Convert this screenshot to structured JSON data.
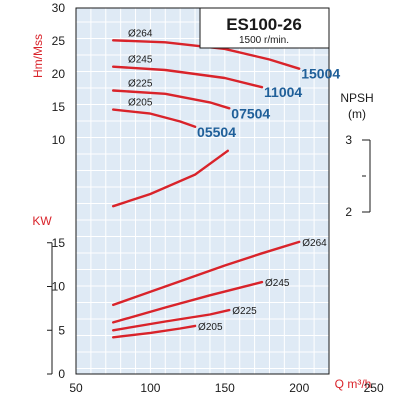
{
  "chart_data": {
    "title": "ES100-26",
    "subtitle": "1500 r/min.",
    "colors": {
      "curve": "#d9232a",
      "model": "#1f5f99",
      "grid_bg": "#dfeaf5"
    },
    "x_axis": {
      "label": "Q m³/h",
      "range": [
        50,
        220
      ],
      "ticks": [
        "50",
        "100",
        "150",
        "200",
        "250"
      ],
      "tick_values": [
        50,
        100,
        150,
        200,
        250
      ]
    },
    "head_axis": {
      "label": "Hm/Mss",
      "range": [
        10,
        30
      ],
      "ticks": [
        "10",
        "15",
        "20",
        "25",
        "30"
      ],
      "tick_values": [
        10,
        15,
        20,
        25,
        30
      ]
    },
    "power_axis": {
      "label": "KW",
      "range": [
        0,
        15
      ],
      "ticks": [
        "0",
        "5",
        "10",
        "15"
      ],
      "tick_values": [
        0,
        5,
        10,
        15
      ]
    },
    "npsh_axis": {
      "label_line1": "NPSH",
      "label_line2": "(m)",
      "ticks": [
        "2",
        "3"
      ]
    },
    "head_curves": [
      {
        "diameter": "Ø264",
        "model": "15004",
        "x": [
          75,
          110,
          150,
          180,
          200
        ],
        "y": [
          25.1,
          24.8,
          23.8,
          22.2,
          20.8
        ]
      },
      {
        "diameter": "Ø245",
        "model": "11004",
        "x": [
          75,
          110,
          150,
          175
        ],
        "y": [
          21.1,
          20.6,
          19.4,
          18.0
        ]
      },
      {
        "diameter": "Ø225",
        "model": "07504",
        "x": [
          75,
          110,
          140,
          153
        ],
        "y": [
          17.5,
          17.0,
          15.7,
          14.8
        ]
      },
      {
        "diameter": "Ø205",
        "model": "05504",
        "x": [
          75,
          100,
          120,
          130
        ],
        "y": [
          14.6,
          14.0,
          12.8,
          12.0
        ]
      }
    ],
    "npsh_curve": {
      "x": [
        75,
        100,
        130,
        152
      ],
      "y": [
        2.08,
        2.25,
        2.52,
        2.85
      ]
    },
    "power_curves": [
      {
        "diameter": "Ø264",
        "x": [
          75,
          110,
          150,
          175,
          200
        ],
        "y": [
          7.9,
          10.0,
          12.4,
          13.8,
          15.1
        ]
      },
      {
        "diameter": "Ø245",
        "x": [
          75,
          110,
          140,
          175
        ],
        "y": [
          5.9,
          7.6,
          9.0,
          10.5
        ]
      },
      {
        "diameter": "Ø225",
        "x": [
          75,
          110,
          140,
          153
        ],
        "y": [
          5.0,
          6.0,
          6.8,
          7.3
        ]
      },
      {
        "diameter": "Ø205",
        "x": [
          75,
          100,
          120,
          130
        ],
        "y": [
          4.2,
          4.7,
          5.2,
          5.5
        ]
      }
    ]
  }
}
